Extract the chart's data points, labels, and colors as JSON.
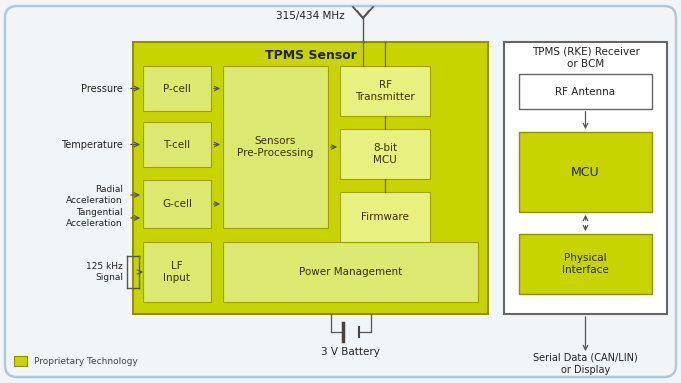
{
  "bg_color": "#f2f5f8",
  "outer_border_color": "#b0c8dc",
  "tpms_sensor_title": "TPMS Sensor",
  "tpms_receiver_title": "TPMS (RKE) Receiver\nor BCM",
  "green_sensor": "#c8d400",
  "green_inner": "#dce870",
  "green_light_box": "#e8f080",
  "white": "#ffffff",
  "text_color": "#3a3000",
  "arrow_color": "#555555",
  "legend_label": "Proprietary Technology",
  "freq_label": "315/434 MHz",
  "battery_label": "3 V Battery",
  "serial_label": "Serial Data (CAN/LIN)\nor Display"
}
